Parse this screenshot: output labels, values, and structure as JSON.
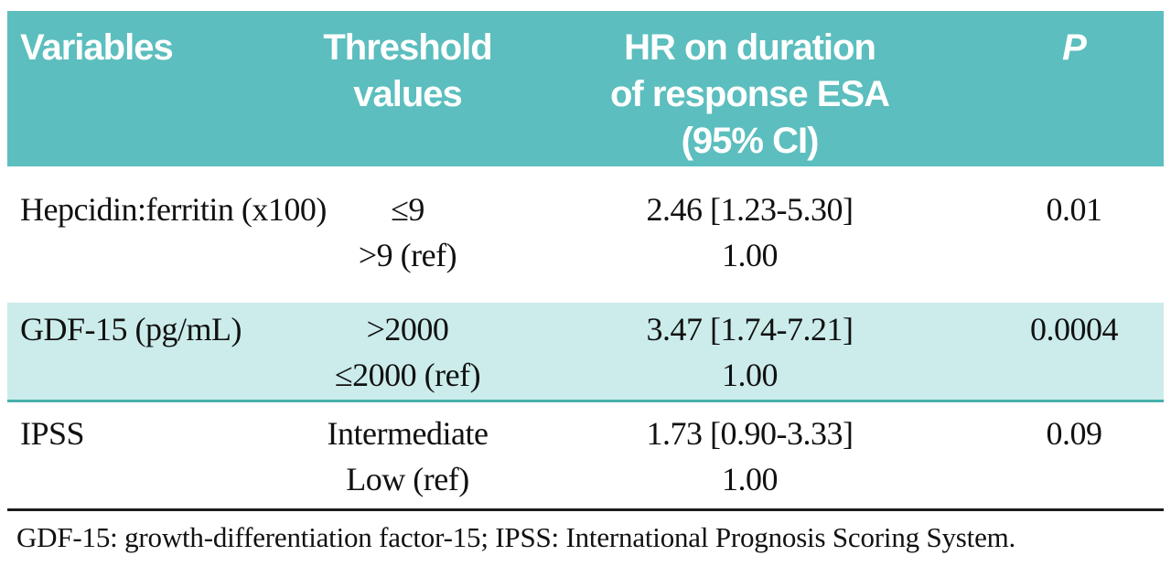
{
  "table": {
    "header": {
      "variables": "Variables",
      "threshold": [
        "Threshold",
        "values"
      ],
      "hr": [
        "HR on duration",
        "of response ESA",
        "(95% CI)"
      ],
      "p": "P"
    },
    "rows": [
      {
        "variable": "Hepcidin:ferritin (x100)",
        "threshold": [
          "≤9",
          ">9 (ref)"
        ],
        "hr": [
          "2.46 [1.23-5.30]",
          "1.00"
        ],
        "p": "0.01",
        "highlighted": false
      },
      {
        "variable": "GDF-15 (pg/mL)",
        "threshold": [
          ">2000",
          "≤2000 (ref)"
        ],
        "hr": [
          "3.47 [1.74-7.21]",
          "1.00"
        ],
        "p": "0.0004",
        "highlighted": true
      },
      {
        "variable": "IPSS",
        "threshold": [
          "Intermediate",
          "Low (ref)"
        ],
        "hr": [
          "1.73 [0.90-3.33]",
          "1.00"
        ],
        "p": "0.09",
        "highlighted": false
      }
    ],
    "footnote": "GDF-15: growth-differentiation factor-15; IPSS: International Prognosis Scoring System."
  },
  "colors": {
    "header_bg": "#5cbebe",
    "highlight_row_bg": "#cbecea",
    "teal_divider": "#46b0ac",
    "header_text": "#ffffff",
    "body_text": "#111111"
  }
}
